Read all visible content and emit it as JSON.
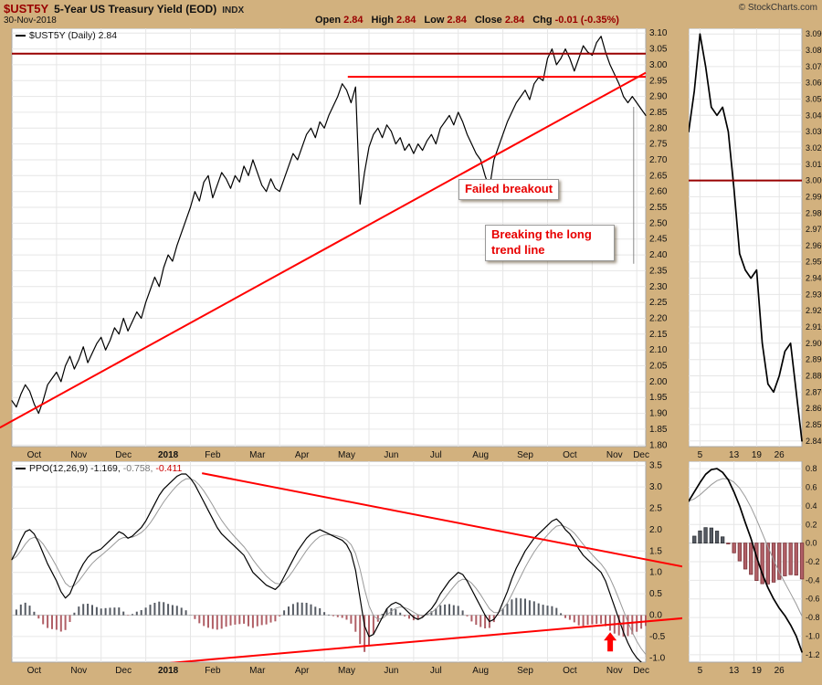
{
  "header": {
    "symbol": "$UST5Y",
    "title": "5-Year US Treasury Yield (EOD)",
    "exchange": "INDX",
    "copyright": "© StockCharts.com",
    "date": "30-Nov-2018",
    "quote_items": [
      {
        "label": "Open",
        "value": "2.84"
      },
      {
        "label": "High",
        "value": "2.84"
      },
      {
        "label": "Low",
        "value": "2.84"
      },
      {
        "label": "Close",
        "value": "2.84"
      },
      {
        "label": "Chg",
        "value": "-0.01 (-0.35%)"
      }
    ]
  },
  "annotations": {
    "failed_breakout": "Failed breakout",
    "breaking_trendline": "Breaking the long trend line"
  },
  "colors": {
    "background": "#d2b17e",
    "plot_bg": "#ffffff",
    "plot_border": "#a8a8a8",
    "grid": "#e6e6e6",
    "grid_zero": "#c4c4c4",
    "price_line": "#000000",
    "signal_line": "#999999",
    "hist_pos": "#565b63",
    "hist_neg": "#b05f66",
    "hist_pos_stroke": "#2f3338",
    "hist_neg_stroke": "#7c343a",
    "maroon": "#990000",
    "red": "#ff0000",
    "annotation_text": "#e80000",
    "callout": "#888888"
  },
  "chart_data": [
    {
      "id": "price_main",
      "type": "line",
      "legend": "$UST5Y (Daily) 2.84",
      "ylim": [
        1.795,
        3.115
      ],
      "yticks": [
        "3.10",
        "3.05",
        "3.00",
        "2.95",
        "2.90",
        "2.85",
        "2.80",
        "2.75",
        "2.70",
        "2.65",
        "2.60",
        "2.55",
        "2.50",
        "2.45",
        "2.40",
        "2.35",
        "2.30",
        "2.25",
        "2.20",
        "2.15",
        "2.10",
        "2.05",
        "2.00",
        "1.95",
        "1.90",
        "1.85",
        "1.80"
      ],
      "xticks": [
        "Oct",
        "Nov",
        "Dec",
        "2018",
        "Feb",
        "Mar",
        "Apr",
        "May",
        "Jun",
        "Jul",
        "Aug",
        "Sep",
        "Oct",
        "Nov",
        "Dec"
      ],
      "month_step": 10,
      "values": [
        1.94,
        1.92,
        1.96,
        1.99,
        1.97,
        1.93,
        1.9,
        1.94,
        1.99,
        2.01,
        2.03,
        2.0,
        2.05,
        2.08,
        2.04,
        2.07,
        2.11,
        2.06,
        2.09,
        2.12,
        2.14,
        2.1,
        2.13,
        2.17,
        2.15,
        2.2,
        2.16,
        2.19,
        2.22,
        2.2,
        2.25,
        2.29,
        2.33,
        2.3,
        2.36,
        2.4,
        2.38,
        2.43,
        2.47,
        2.51,
        2.55,
        2.6,
        2.57,
        2.63,
        2.65,
        2.58,
        2.62,
        2.66,
        2.64,
        2.61,
        2.65,
        2.63,
        2.68,
        2.65,
        2.7,
        2.66,
        2.62,
        2.6,
        2.64,
        2.61,
        2.6,
        2.64,
        2.68,
        2.72,
        2.7,
        2.74,
        2.78,
        2.8,
        2.77,
        2.82,
        2.8,
        2.84,
        2.87,
        2.9,
        2.94,
        2.92,
        2.88,
        2.93,
        2.56,
        2.66,
        2.74,
        2.78,
        2.8,
        2.77,
        2.81,
        2.79,
        2.75,
        2.77,
        2.73,
        2.75,
        2.72,
        2.75,
        2.73,
        2.76,
        2.78,
        2.75,
        2.8,
        2.82,
        2.84,
        2.81,
        2.85,
        2.82,
        2.78,
        2.75,
        2.72,
        2.7,
        2.65,
        2.61,
        2.7,
        2.74,
        2.78,
        2.82,
        2.85,
        2.88,
        2.9,
        2.92,
        2.89,
        2.94,
        2.96,
        2.95,
        3.02,
        3.05,
        3.0,
        3.02,
        3.05,
        3.02,
        2.98,
        3.02,
        3.06,
        3.04,
        3.03,
        3.07,
        3.09,
        3.04,
        3.0,
        2.97,
        2.94,
        2.9,
        2.88,
        2.9,
        2.88,
        2.86,
        2.84
      ],
      "overlays": {
        "hlines": [
          {
            "value": 3.035,
            "color": "maroon",
            "width": 2,
            "x0": 0,
            "x1": 1
          },
          {
            "value": 2.962,
            "color": "red",
            "width": 2,
            "x0": 0.53,
            "x1": 1
          }
        ],
        "lines": [
          {
            "x0": -0.019,
            "v0": 1.855,
            "x1": 1.0,
            "v1": 2.975,
            "color": "red",
            "width": 2
          },
          {
            "x0": 0.981,
            "v0": 2.867,
            "x1": 0.981,
            "v1": 2.372,
            "color": "callout",
            "width": 1
          }
        ]
      }
    },
    {
      "id": "price_zoom",
      "type": "line",
      "ylim": [
        2.8365,
        3.0935
      ],
      "yticks": [
        "3.090",
        "3.080",
        "3.070",
        "3.060",
        "3.050",
        "3.040",
        "3.030",
        "3.020",
        "3.010",
        "3.000",
        "2.990",
        "2.980",
        "2.970",
        "2.960",
        "2.950",
        "2.940",
        "2.930",
        "2.920",
        "2.910",
        "2.900",
        "2.890",
        "2.880",
        "2.870",
        "2.860",
        "2.850",
        "2.840"
      ],
      "xticks": [
        "5",
        "13",
        "19",
        "26"
      ],
      "x_tick_positions": [
        2,
        8,
        12,
        16
      ],
      "values": [
        3.03,
        3.055,
        3.09,
        3.07,
        3.045,
        3.04,
        3.045,
        3.03,
        2.995,
        2.955,
        2.945,
        2.94,
        2.945,
        2.9,
        2.875,
        2.87,
        2.88,
        2.895,
        2.9,
        2.87,
        2.84
      ],
      "overlays": {
        "hlines": [
          {
            "value": 3.0,
            "color": "maroon",
            "width": 2,
            "x0": 0,
            "x1": 1
          }
        ]
      }
    },
    {
      "id": "ppo_main",
      "type": "line+histogram",
      "legend_label": "PPO(12,26,9)",
      "legend_values": [
        "-1.169,",
        "-0.758,",
        "-0.411"
      ],
      "ylim": [
        -1.1,
        3.6
      ],
      "yticks": [
        "3.5",
        "3.0",
        "2.5",
        "2.0",
        "1.5",
        "1.0",
        "0.5",
        "0.0",
        "-0.5",
        "-1.0"
      ],
      "xticks": [
        "Oct",
        "Nov",
        "Dec",
        "2018",
        "Feb",
        "Mar",
        "Apr",
        "May",
        "Jun",
        "Jul",
        "Aug",
        "Sep",
        "Oct",
        "Nov",
        "Dec"
      ],
      "month_step": 10,
      "signal_alpha": 0.35,
      "values": [
        1.3,
        1.5,
        1.75,
        1.95,
        2.0,
        1.9,
        1.7,
        1.45,
        1.2,
        1.0,
        0.8,
        0.55,
        0.4,
        0.5,
        0.75,
        1.0,
        1.2,
        1.35,
        1.45,
        1.5,
        1.55,
        1.65,
        1.75,
        1.85,
        1.95,
        1.9,
        1.8,
        1.85,
        1.95,
        2.05,
        2.2,
        2.4,
        2.6,
        2.8,
        2.95,
        3.05,
        3.15,
        3.25,
        3.3,
        3.3,
        3.2,
        3.05,
        2.85,
        2.65,
        2.45,
        2.25,
        2.05,
        1.9,
        1.8,
        1.7,
        1.6,
        1.5,
        1.4,
        1.2,
        1.0,
        0.9,
        0.8,
        0.7,
        0.65,
        0.6,
        0.7,
        0.9,
        1.1,
        1.3,
        1.5,
        1.65,
        1.8,
        1.9,
        1.95,
        2.0,
        1.95,
        1.9,
        1.85,
        1.8,
        1.75,
        1.65,
        1.45,
        1.05,
        0.4,
        -0.25,
        -0.5,
        -0.45,
        -0.25,
        -0.05,
        0.15,
        0.25,
        0.3,
        0.25,
        0.15,
        0.05,
        -0.05,
        -0.1,
        -0.05,
        0.05,
        0.15,
        0.3,
        0.5,
        0.65,
        0.8,
        0.9,
        1.0,
        0.95,
        0.8,
        0.6,
        0.4,
        0.2,
        0.0,
        -0.15,
        -0.1,
        0.05,
        0.3,
        0.55,
        0.85,
        1.1,
        1.3,
        1.5,
        1.65,
        1.8,
        1.9,
        2.0,
        2.1,
        2.2,
        2.25,
        2.15,
        2.0,
        1.9,
        1.75,
        1.55,
        1.4,
        1.3,
        1.2,
        1.1,
        1.0,
        0.8,
        0.5,
        0.2,
        -0.1,
        -0.4,
        -0.65,
        -0.85,
        -1.0,
        -1.1,
        -1.169
      ],
      "overlays": {
        "lines": [
          {
            "x0": 0.3,
            "v0": 3.32,
            "x1": 1.06,
            "v1": 1.13,
            "color": "red",
            "width": 2
          },
          {
            "x0": 0.25,
            "v0": -1.12,
            "x1": 1.06,
            "v1": -0.07,
            "color": "red",
            "width": 2
          }
        ],
        "arrow": {
          "x": 0.944,
          "v_top": -0.4,
          "v_bottom": -0.85,
          "color": "red"
        }
      }
    },
    {
      "id": "ppo_zoom",
      "type": "line+histogram",
      "ylim": [
        -1.28,
        0.88
      ],
      "yticks": [
        "0.8",
        "0.6",
        "0.4",
        "0.2",
        "0.0",
        "-0.2",
        "-0.4",
        "-0.6",
        "-0.8",
        "-1.0",
        "-1.2"
      ],
      "xticks": [
        "5",
        "13",
        "19",
        "26"
      ],
      "x_tick_positions": [
        2,
        8,
        12,
        16
      ],
      "signal_alpha": 0.25,
      "values": [
        0.45,
        0.55,
        0.65,
        0.74,
        0.79,
        0.8,
        0.76,
        0.68,
        0.55,
        0.4,
        0.22,
        0.05,
        -0.15,
        -0.33,
        -0.48,
        -0.6,
        -0.7,
        -0.78,
        -0.88,
        -1.0,
        -1.17
      ]
    }
  ]
}
